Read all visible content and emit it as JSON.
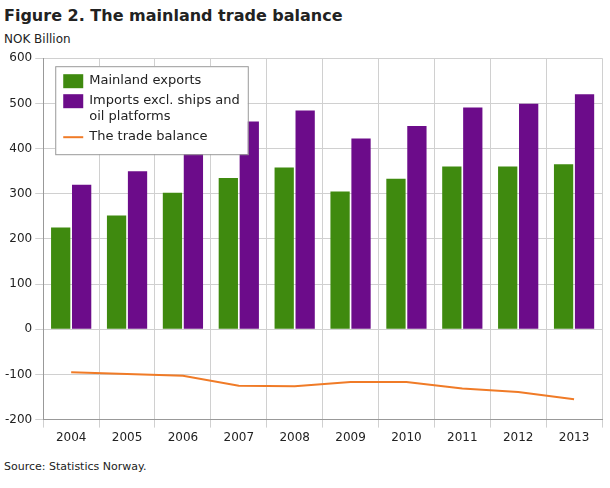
{
  "chart_data": {
    "type": "bar",
    "title": "Figure 2. The mainland trade balance",
    "subtitle": "NOK Billion",
    "source": "Source: Statistics Norway.",
    "categories": [
      "2004",
      "2005",
      "2006",
      "2007",
      "2008",
      "2009",
      "2010",
      "2011",
      "2012",
      "2013"
    ],
    "series": [
      {
        "name": "Mainland exports",
        "type": "bar",
        "color": "#3f8a0f",
        "values": [
          225,
          252,
          302,
          335,
          358,
          305,
          333,
          360,
          360,
          365
        ]
      },
      {
        "name": "Imports excl. ships and oil platforms",
        "type": "bar",
        "color": "#6c0c8a",
        "values": [
          320,
          350,
          405,
          460,
          484,
          422,
          450,
          491,
          499,
          520
        ]
      },
      {
        "name": "The trade balance",
        "type": "line",
        "color": "#f07b27",
        "values": [
          -95,
          -99,
          -103,
          -125,
          -126,
          -117,
          -117,
          -131,
          -139,
          -155
        ]
      }
    ],
    "ylim": [
      -200,
      600
    ],
    "yticks": [
      -200,
      -100,
      0,
      100,
      200,
      300,
      400,
      500,
      600
    ],
    "grid": true,
    "legend": "upper left"
  }
}
